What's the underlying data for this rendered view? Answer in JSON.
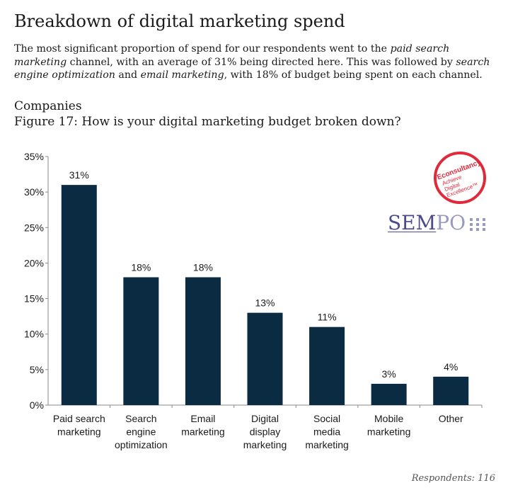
{
  "page": {
    "title": "Breakdown of digital marketing spend",
    "intro": [
      {
        "text": "The most significant proportion of spend for our respondents went to the ",
        "italic": false
      },
      {
        "text": "paid search marketing",
        "italic": true
      },
      {
        "text": " channel, with an average of 31% being directed here. This was followed by ",
        "italic": false
      },
      {
        "text": "search engine optimization",
        "italic": true
      },
      {
        "text": " and ",
        "italic": false
      },
      {
        "text": "email marketing",
        "italic": true
      },
      {
        "text": ", with 18% of budget being spent on each channel.",
        "italic": false
      }
    ],
    "group_label": "Companies",
    "figure_caption": "Figure 17: How is your digital marketing budget broken down?",
    "respondents": "Respondents: 116"
  },
  "logos": {
    "econsultancy": {
      "name": "Econsultancy",
      "tagline": [
        "Achieve",
        "Digital",
        "Excellence™"
      ],
      "color": "#e0293a"
    },
    "sempo": {
      "sem": "SEM",
      "po": "PO",
      "sem_color": "#4a4a8c",
      "po_color": "#9a9ac0"
    }
  },
  "chart_data": {
    "type": "bar",
    "categories": [
      [
        "Paid search",
        "marketing"
      ],
      [
        "Search",
        "engine",
        "optimization"
      ],
      [
        "Email",
        "marketing"
      ],
      [
        "Digital",
        "display",
        "marketing"
      ],
      [
        "Social",
        "media",
        "marketing"
      ],
      [
        "Mobile",
        "marketing"
      ],
      [
        "Other"
      ]
    ],
    "values": [
      31,
      18,
      18,
      13,
      11,
      3,
      4
    ],
    "data_labels": [
      "31%",
      "18%",
      "18%",
      "13%",
      "11%",
      "3%",
      "4%"
    ],
    "ylim": [
      0,
      35
    ],
    "yticks": [
      0,
      5,
      10,
      15,
      20,
      25,
      30,
      35
    ],
    "ytick_labels": [
      "0%",
      "5%",
      "10%",
      "15%",
      "20%",
      "25%",
      "30%",
      "35%"
    ],
    "grid": false,
    "bar_color": "#0b2b42"
  }
}
